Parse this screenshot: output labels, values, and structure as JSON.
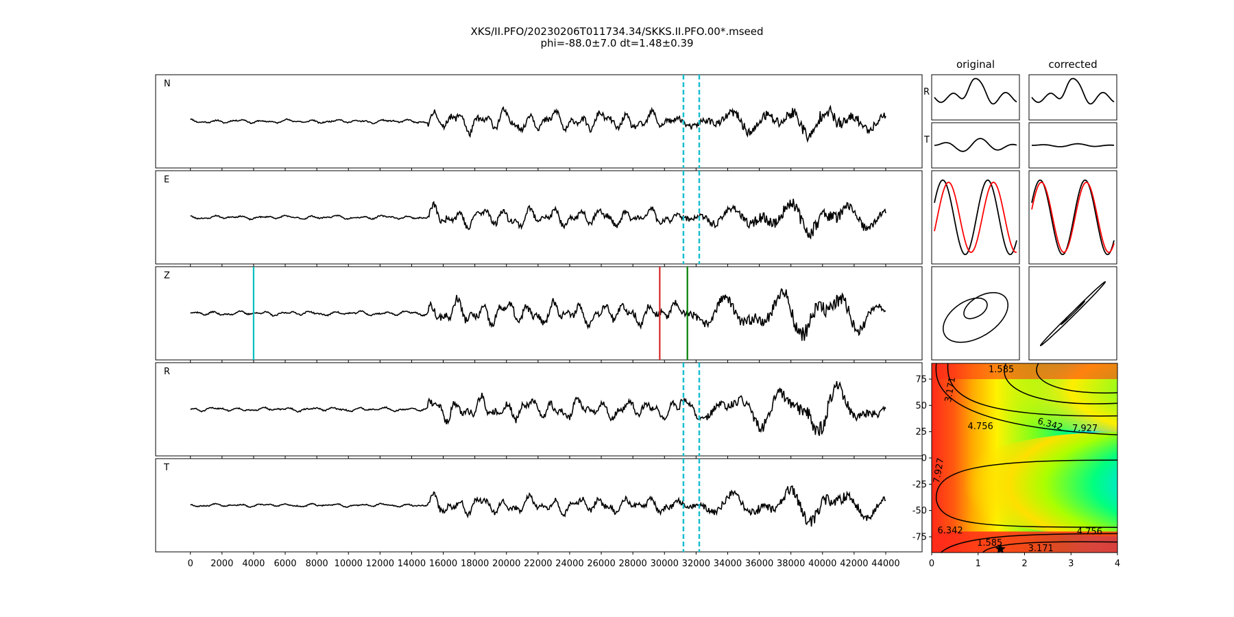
{
  "figure": {
    "title_line1": "XKS/II.PFO/20230206T011734.34/SKKS.II.PFO.00*.mseed",
    "title_line2": "phi=-88.0±7.0 dt=1.48±0.39"
  },
  "colors": {
    "trace": "#000000",
    "window_dashed": "#17becf",
    "cyan_marker": "#00bfbf",
    "red_marker": "#d62728",
    "green_marker": "#008000",
    "overlay_red": "#ff0000",
    "heatmap_colormap": "gist_rainbow (red at minimum, magenta at maximum)"
  },
  "chart_data": [
    {
      "type": "line",
      "subplots": [
        "N",
        "E",
        "Z",
        "R",
        "T"
      ],
      "xlabel": "",
      "ylabel": "",
      "xlim": [
        -2200,
        46300
      ],
      "x_ticks": [
        0,
        2000,
        4000,
        6000,
        8000,
        10000,
        12000,
        14000,
        16000,
        18000,
        20000,
        22000,
        24000,
        26000,
        28000,
        30000,
        32000,
        34000,
        36000,
        38000,
        40000,
        42000,
        44000
      ],
      "x_tick_labels": [
        "0",
        "2000",
        "4000",
        "6000",
        "8000",
        "10000",
        "12000",
        "14000",
        "16000",
        "18000",
        "20000",
        "22000",
        "24000",
        "26000",
        "28000",
        "30000",
        "32000",
        "34000",
        "36000",
        "38000",
        "40000",
        "42000",
        "44000"
      ],
      "trace_x_range": [
        0,
        44000
      ],
      "signal_onset_x": 15000,
      "analysis_window_dashed_x": [
        31200,
        32200
      ],
      "dashed_on_panels": [
        "N",
        "E",
        "R",
        "T"
      ],
      "z_markers": [
        {
          "x": 4000,
          "color": "cyan"
        },
        {
          "x": 29700,
          "color": "red"
        },
        {
          "x": 31450,
          "color": "green"
        }
      ],
      "grid": false
    },
    {
      "type": "line",
      "column_titles": [
        "original",
        "corrected"
      ],
      "row_labels": [
        "R",
        "T"
      ],
      "rows": [
        "R component",
        "T component",
        "waveform overlay (black and red)",
        "particle motion"
      ],
      "grid": false
    },
    {
      "type": "heatmap",
      "xlim": [
        0,
        4
      ],
      "ylim": [
        -90,
        90
      ],
      "x_ticks": [
        0,
        1,
        2,
        3,
        4
      ],
      "y_ticks": [
        -75,
        -50,
        -25,
        0,
        25,
        50,
        75
      ],
      "contour_labels": [
        "1.585",
        "3.171",
        "4.756",
        "6.342",
        "7.927"
      ],
      "best_fit_star": {
        "dt": 1.48,
        "phi": -88.0
      },
      "minimum_band_phi": [
        -90,
        -70,
        90,
        75
      ],
      "maximum_center": {
        "dt": 4.0,
        "phi": -25
      },
      "secondary_high_center": {
        "dt": 4.0,
        "phi": 65
      },
      "grid": false
    }
  ]
}
